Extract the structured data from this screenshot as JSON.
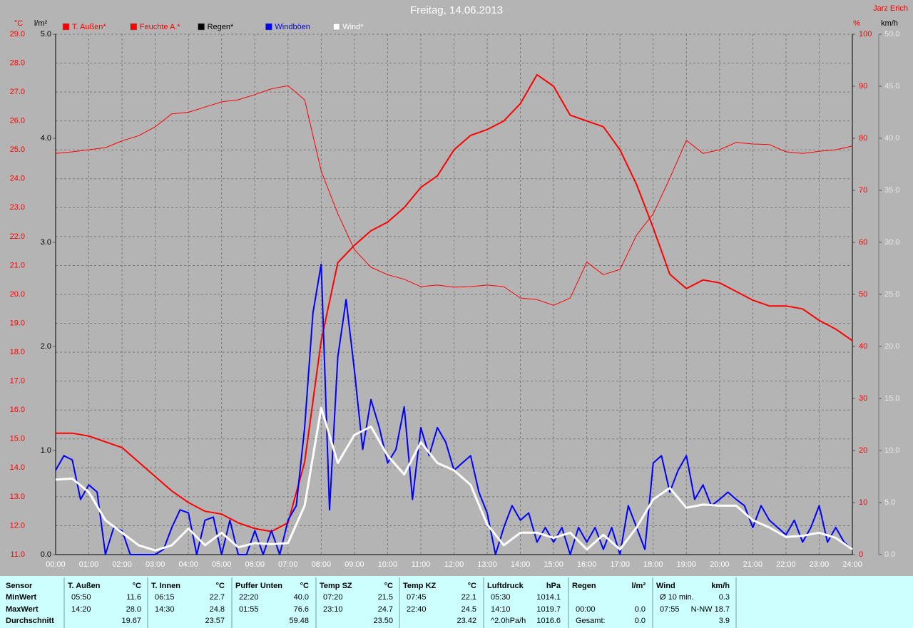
{
  "chart_data": {
    "type": "line",
    "title": "Freitag, 14.06.2013",
    "author": "Jarz Erich",
    "axis_labels": {
      "y": "°C",
      "y3": "l/m²",
      "y2": "%",
      "y4": "km/h"
    },
    "grid": true,
    "xlim": [
      0,
      24
    ],
    "xticks": [
      {
        "value": 0,
        "label": "00:00"
      },
      {
        "value": 1,
        "label": "01:00"
      },
      {
        "value": 2,
        "label": "02:00"
      },
      {
        "value": 3,
        "label": "03:00"
      },
      {
        "value": 4,
        "label": "04:00"
      },
      {
        "value": 5,
        "label": "05:00"
      },
      {
        "value": 6,
        "label": "06:00"
      },
      {
        "value": 7,
        "label": "07:00"
      },
      {
        "value": 8,
        "label": "08:00"
      },
      {
        "value": 9,
        "label": "09:00"
      },
      {
        "value": 10,
        "label": "10:00"
      },
      {
        "value": 11,
        "label": "11:00"
      },
      {
        "value": 12,
        "label": "12:00"
      },
      {
        "value": 13,
        "label": "13:00"
      },
      {
        "value": 14,
        "label": "14:00"
      },
      {
        "value": 15,
        "label": "15:00"
      },
      {
        "value": 16,
        "label": "16:00"
      },
      {
        "value": 17,
        "label": "17:00"
      },
      {
        "value": 18,
        "label": "18:00"
      },
      {
        "value": 19,
        "label": "19:00"
      },
      {
        "value": 20,
        "label": "20:00"
      },
      {
        "value": 21,
        "label": "21:00"
      },
      {
        "value": 22,
        "label": "22:00"
      },
      {
        "value": 23,
        "label": "23:00"
      },
      {
        "value": 24,
        "label": "24:00"
      }
    ],
    "ylim": [
      11,
      29
    ],
    "yticks": [
      {
        "value": 11,
        "label": "11.0"
      },
      {
        "value": 12,
        "label": "12.0"
      },
      {
        "value": 13,
        "label": "13.0"
      },
      {
        "value": 14,
        "label": "14.0"
      },
      {
        "value": 15,
        "label": "15.0"
      },
      {
        "value": 16,
        "label": "16.0"
      },
      {
        "value": 17,
        "label": "17.0"
      },
      {
        "value": 18,
        "label": "18.0"
      },
      {
        "value": 19,
        "label": "19.0"
      },
      {
        "value": 20,
        "label": "20.0"
      },
      {
        "value": 21,
        "label": "21.0"
      },
      {
        "value": 22,
        "label": "22.0"
      },
      {
        "value": 23,
        "label": "23.0"
      },
      {
        "value": 24,
        "label": "24.0"
      },
      {
        "value": 25,
        "label": "25.0"
      },
      {
        "value": 26,
        "label": "26.0"
      },
      {
        "value": 27,
        "label": "27.0"
      },
      {
        "value": 28,
        "label": "28.0"
      },
      {
        "value": 29,
        "label": "29.0"
      }
    ],
    "y3lim": [
      0,
      5
    ],
    "y3ticks": [
      {
        "value": 0,
        "label": "0.0"
      },
      {
        "value": 1,
        "label": "1.0"
      },
      {
        "value": 2,
        "label": "2.0"
      },
      {
        "value": 3,
        "label": "3.0"
      },
      {
        "value": 4,
        "label": "4.0"
      },
      {
        "value": 5,
        "label": "5.0"
      }
    ],
    "y2lim": [
      0,
      100
    ],
    "y2ticks": [
      0,
      10,
      20,
      30,
      40,
      50,
      60,
      70,
      80,
      90,
      100
    ],
    "y4lim": [
      0,
      50
    ],
    "y4ticks": [
      {
        "value": 0,
        "label": "0.0"
      },
      {
        "value": 5,
        "label": "5.0"
      },
      {
        "value": 10,
        "label": "10.0"
      },
      {
        "value": 15,
        "label": "15.0"
      },
      {
        "value": 20,
        "label": "20.0"
      },
      {
        "value": 25,
        "label": "25.0"
      },
      {
        "value": 30,
        "label": "30.0"
      },
      {
        "value": 35,
        "label": "35.0"
      },
      {
        "value": 40,
        "label": "40.0"
      },
      {
        "value": 45,
        "label": "45.0"
      },
      {
        "value": 50,
        "label": "50.0"
      }
    ],
    "x": [
      0,
      0.5,
      1,
      1.5,
      2,
      2.5,
      3,
      3.5,
      4,
      4.5,
      5,
      5.5,
      6,
      6.5,
      7,
      7.5,
      8,
      8.5,
      9,
      9.5,
      10,
      10.5,
      11,
      11.5,
      12,
      12.5,
      13,
      13.5,
      14,
      14.5,
      15,
      15.5,
      16,
      16.5,
      17,
      17.5,
      18,
      18.5,
      19,
      19.5,
      20,
      20.5,
      21,
      21.5,
      22,
      22.5,
      23,
      23.5,
      24
    ],
    "series": [
      {
        "name": "T. Außen*",
        "color": "#ff0000",
        "axis": "y",
        "width": 2,
        "values": [
          15.2,
          15.2,
          15.1,
          14.9,
          14.7,
          14.2,
          13.7,
          13.2,
          12.8,
          12.5,
          12.4,
          12.1,
          11.9,
          11.8,
          12.1,
          14.2,
          18.4,
          21.1,
          21.7,
          22.2,
          22.5,
          23.0,
          23.7,
          24.1,
          25.0,
          25.5,
          25.7,
          26.0,
          26.6,
          27.6,
          27.2,
          26.2,
          26.0,
          25.8,
          25.0,
          23.8,
          22.3,
          20.7,
          20.2,
          20.5,
          20.4,
          20.1,
          19.8,
          19.6,
          19.6,
          19.5,
          19.1,
          18.8,
          18.4
        ]
      },
      {
        "name": "Feuchte A.*",
        "color": "#ff0000",
        "axis": "y2",
        "width": 1,
        "values": [
          77.1,
          77.4,
          77.8,
          78.2,
          79.5,
          80.5,
          82.2,
          84.7,
          85.0,
          86.0,
          87.0,
          87.4,
          88.4,
          89.5,
          90.1,
          87.4,
          73.7,
          65.5,
          58.6,
          55.2,
          53.8,
          52.9,
          51.5,
          51.8,
          51.4,
          51.5,
          51.8,
          51.5,
          49.3,
          49.0,
          47.9,
          49.3,
          56.2,
          53.8,
          54.8,
          61.4,
          65.5,
          72.3,
          79.6,
          77.1,
          77.8,
          79.2,
          78.9,
          78.8,
          77.4,
          77.1,
          77.5,
          77.8,
          78.5
        ]
      },
      {
        "name": "Regen*",
        "color": "#000000",
        "axis": "y3",
        "width": 1,
        "values": [
          0,
          0,
          0,
          0,
          0,
          0,
          0,
          0,
          0,
          0,
          0,
          0,
          0,
          0,
          0,
          0,
          0,
          0,
          0,
          0,
          0,
          0,
          0,
          0,
          0,
          0,
          0,
          0,
          0,
          0,
          0,
          0,
          0,
          0,
          0,
          0,
          0,
          0,
          0,
          0,
          0,
          0,
          0,
          0,
          0,
          0,
          0,
          0,
          0
        ]
      },
      {
        "name": "Windböen",
        "color": "#0000ff",
        "axis": "y4",
        "width": 2,
        "x": [
          0,
          0.25,
          0.5,
          0.75,
          1,
          1.25,
          1.5,
          1.75,
          2,
          2.25,
          2.5,
          2.75,
          3,
          3.25,
          3.5,
          3.75,
          4,
          4.25,
          4.5,
          4.75,
          5,
          5.25,
          5.5,
          5.75,
          6,
          6.25,
          6.5,
          6.75,
          7,
          7.25,
          7.5,
          7.75,
          8,
          8.25,
          8.5,
          8.75,
          9,
          9.25,
          9.5,
          9.75,
          10,
          10.25,
          10.5,
          10.75,
          11,
          11.25,
          11.5,
          11.75,
          12,
          12.25,
          12.5,
          12.75,
          13,
          13.25,
          13.5,
          13.75,
          14,
          14.25,
          14.5,
          14.75,
          15,
          15.25,
          15.5,
          15.75,
          16,
          16.25,
          16.5,
          16.75,
          17,
          17.25,
          17.5,
          17.75,
          18,
          18.25,
          18.5,
          18.75,
          19,
          19.25,
          19.5,
          19.75,
          20,
          20.25,
          20.5,
          20.75,
          21,
          21.25,
          21.5,
          21.75,
          22,
          22.25,
          22.5,
          22.75,
          23,
          23.25,
          23.5,
          23.75,
          24
        ],
        "values": [
          8.1,
          9.5,
          9.1,
          5.3,
          6.7,
          6.0,
          0,
          2.6,
          2.3,
          0,
          0,
          0,
          0,
          0.5,
          2.6,
          4.3,
          4.0,
          0,
          3.3,
          3.6,
          0,
          3.3,
          0,
          0,
          2.3,
          0,
          2.3,
          0,
          3.3,
          4.7,
          12.2,
          23.2,
          27.9,
          4.3,
          19,
          24.5,
          17.7,
          10.1,
          14.9,
          12.2,
          8.8,
          10.1,
          14.2,
          5.3,
          12.2,
          9.5,
          12.2,
          10.8,
          8.1,
          8.8,
          9.5,
          6.0,
          4.0,
          0,
          2.6,
          4.7,
          3.3,
          4.0,
          1.2,
          2.6,
          1.2,
          2.6,
          0,
          2.6,
          1.2,
          2.6,
          0.5,
          2.6,
          0,
          4.7,
          2.6,
          0.5,
          8.8,
          9.5,
          6.0,
          8.1,
          9.5,
          5.3,
          6.7,
          4.7,
          5.3,
          6.0,
          5.3,
          4.7,
          2.6,
          4.7,
          3.3,
          2.6,
          1.9,
          3.3,
          1.2,
          2.6,
          4.7,
          1.2,
          2.6,
          1.2,
          0.5
        ]
      },
      {
        "name": "Wind*",
        "color": "#ffffff",
        "axis": "y4",
        "width": 3,
        "values": [
          7.2,
          7.3,
          6.0,
          3.3,
          2.1,
          0.9,
          0.4,
          0.9,
          2.5,
          0.9,
          2.1,
          0.7,
          1.1,
          1.0,
          1.1,
          4.7,
          14.1,
          8.8,
          11.5,
          12.3,
          9.5,
          7.7,
          10.8,
          8.8,
          8.1,
          6.7,
          2.9,
          0.9,
          2.1,
          2.1,
          1.6,
          2.1,
          0.5,
          1.9,
          0.5,
          2.6,
          5.3,
          6.4,
          4.5,
          4.8,
          4.7,
          4.7,
          3.3,
          2.6,
          1.7,
          1.8,
          2.1,
          1.6,
          0.5
        ]
      }
    ]
  },
  "table": {
    "row_labels": [
      "Sensor",
      "MinWert",
      "MaxWert",
      "Durchschnitt"
    ],
    "groups": [
      {
        "name": "T. Außen",
        "unit": "°C",
        "rows": [
          [
            "05:50",
            "11.6"
          ],
          [
            "14:20",
            "28.0"
          ],
          [
            null,
            "19.67"
          ]
        ]
      },
      {
        "name": "T. Innen",
        "unit": "°C",
        "rows": [
          [
            "06:15",
            "22.7"
          ],
          [
            "14:30",
            "24.8"
          ],
          [
            null,
            "23.57"
          ]
        ]
      },
      {
        "name": "Puffer Unten",
        "unit": "°C",
        "rows": [
          [
            "22:20",
            "40.0"
          ],
          [
            "01:55",
            "76.6"
          ],
          [
            null,
            "59.48"
          ]
        ]
      },
      {
        "name": "Temp SZ",
        "unit": "°C",
        "rows": [
          [
            "07:20",
            "21.5"
          ],
          [
            "23:10",
            "24.7"
          ],
          [
            null,
            "23.50"
          ]
        ]
      },
      {
        "name": "Temp KZ",
        "unit": "°C",
        "rows": [
          [
            "07:45",
            "22.1"
          ],
          [
            "22:40",
            "24.5"
          ],
          [
            null,
            "23.42"
          ]
        ]
      },
      {
        "name": "Luftdruck",
        "unit": "hPa",
        "rows": [
          [
            "05:30",
            "1014.1"
          ],
          [
            "14:10",
            "1019.7"
          ],
          [
            "^2.0hPa/h",
            "1016.6"
          ]
        ]
      },
      {
        "name": "Regen",
        "unit": "l/m²",
        "rows": [
          [
            null,
            null
          ],
          [
            "00:00",
            "0.0"
          ],
          [
            "Gesamt:",
            "0.0"
          ]
        ]
      },
      {
        "name": "Wind",
        "unit": "km/h",
        "rows": [
          [
            "Ø 10 min.",
            "0.3"
          ],
          [
            "07:55",
            "N-NW 18.7"
          ],
          [
            null,
            "3.9"
          ]
        ]
      }
    ]
  }
}
